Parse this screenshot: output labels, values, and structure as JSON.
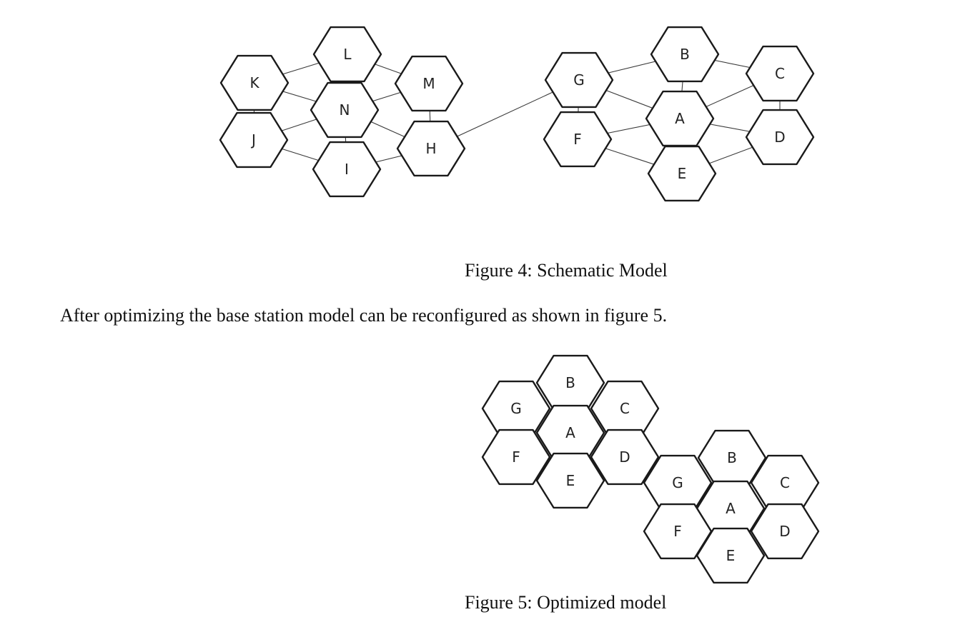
{
  "figure4": {
    "caption": "Figure 4: Schematic Model",
    "cells": [
      "K",
      "L",
      "M",
      "N",
      "J",
      "I",
      "H",
      "G",
      "B",
      "C",
      "A",
      "F",
      "D",
      "E"
    ],
    "links": [
      [
        "K",
        "L"
      ],
      [
        "K",
        "N"
      ],
      [
        "K",
        "J"
      ],
      [
        "L",
        "N"
      ],
      [
        "L",
        "M"
      ],
      [
        "M",
        "N"
      ],
      [
        "M",
        "H"
      ],
      [
        "N",
        "J"
      ],
      [
        "N",
        "I"
      ],
      [
        "N",
        "H"
      ],
      [
        "J",
        "I"
      ],
      [
        "I",
        "H"
      ],
      [
        "H",
        "G"
      ],
      [
        "G",
        "B"
      ],
      [
        "G",
        "A"
      ],
      [
        "G",
        "F"
      ],
      [
        "B",
        "A"
      ],
      [
        "B",
        "C"
      ],
      [
        "C",
        "A"
      ],
      [
        "C",
        "D"
      ],
      [
        "A",
        "F"
      ],
      [
        "A",
        "E"
      ],
      [
        "A",
        "D"
      ],
      [
        "F",
        "E"
      ],
      [
        "E",
        "D"
      ]
    ]
  },
  "body_text": "After optimizing the base station model can be reconfigured as shown in figure 5.",
  "figure5": {
    "caption": "Figure 5: Optimized model",
    "cluster1": [
      "B",
      "G",
      "C",
      "A",
      "F",
      "D",
      "E"
    ],
    "cluster2": [
      "B",
      "G",
      "C",
      "A",
      "F",
      "D",
      "E"
    ]
  }
}
